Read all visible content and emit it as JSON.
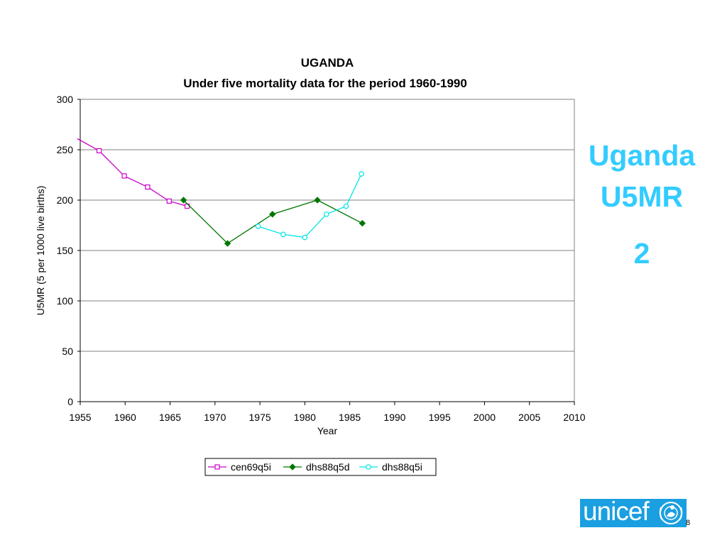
{
  "chart_data": {
    "type": "line",
    "title": "UGANDA",
    "subtitle": "Under five mortality data for the period 1960-1990",
    "xlabel": "Year",
    "ylabel": "U5MR (5 per 1000 live births)",
    "xlim": [
      1955,
      2010
    ],
    "ylim": [
      0,
      300
    ],
    "xticks": [
      1955,
      1960,
      1965,
      1970,
      1975,
      1980,
      1985,
      1990,
      1995,
      2000,
      2005,
      2010
    ],
    "yticks": [
      0,
      50,
      100,
      150,
      200,
      250,
      300
    ],
    "grid": "horizontal",
    "legend_position": "bottom",
    "series": [
      {
        "name": "cen69q5i",
        "color": "#cc00cc",
        "marker": "square-open",
        "x": [
          1957.1,
          1959.9,
          1962.5,
          1964.9,
          1966.9
        ],
        "y": [
          249,
          224,
          213,
          199,
          194
        ],
        "extend_left_from": [
          1955,
          261
        ]
      },
      {
        "name": "dhs88q5d",
        "color": "#007700",
        "marker": "diamond-filled",
        "x": [
          1966.5,
          1971.4,
          1976.4,
          1981.4,
          1986.4
        ],
        "y": [
          200,
          157,
          186,
          200,
          177
        ]
      },
      {
        "name": "dhs88q5i",
        "color": "#00e5e5",
        "marker": "circle-open",
        "x": [
          1974.8,
          1977.6,
          1980.0,
          1982.4,
          1984.6,
          1986.3
        ],
        "y": [
          174,
          166,
          163,
          186,
          194,
          226
        ]
      }
    ]
  },
  "side": {
    "line1": "Uganda",
    "line2": "U5MR",
    "line3": "2"
  },
  "logo": {
    "text": "unicef"
  },
  "page_number": "8"
}
